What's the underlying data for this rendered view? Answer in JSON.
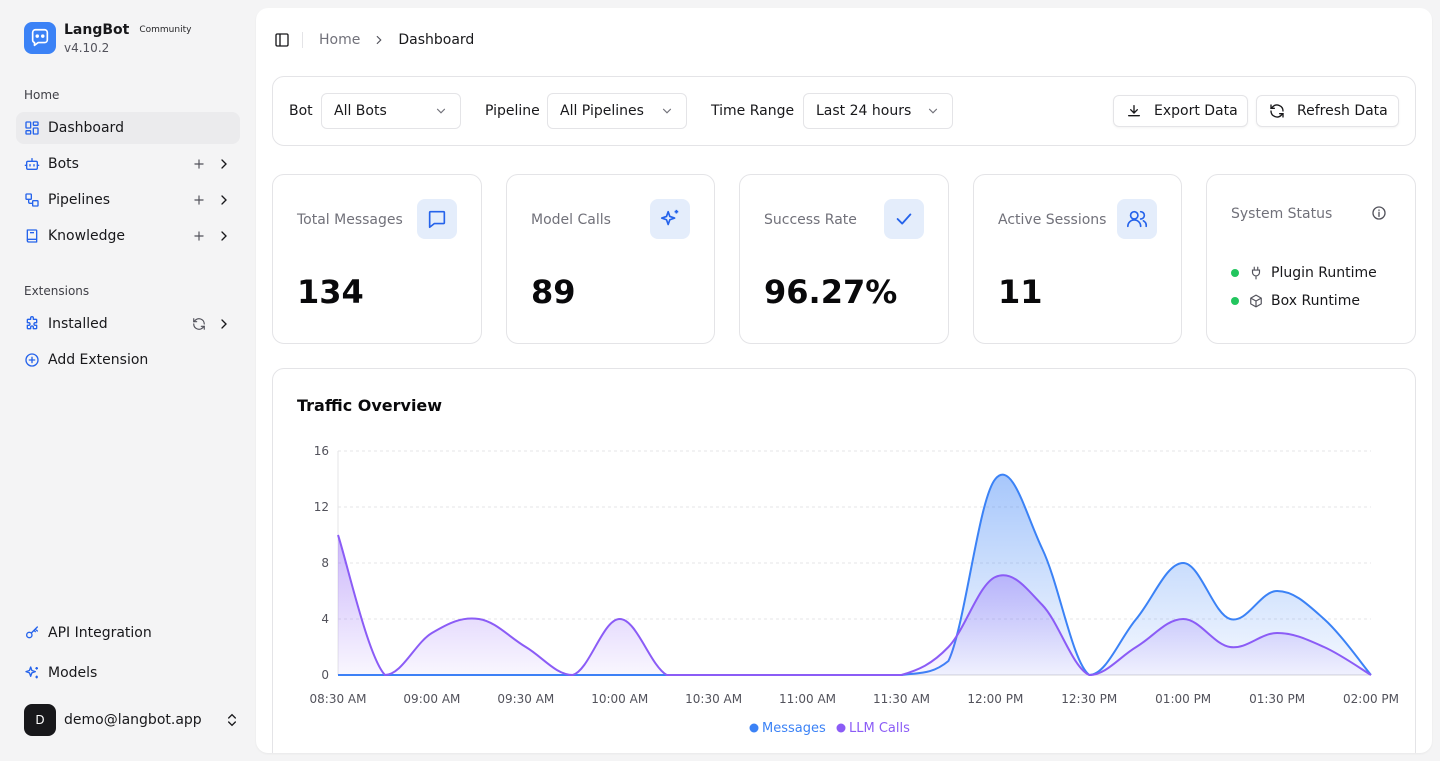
{
  "brand": {
    "name": "LangBot",
    "badge": "Community",
    "version": "v4.10.2"
  },
  "sidebar": {
    "home_label": "Home",
    "nav": [
      {
        "label": "Dashboard",
        "icon": "dashboard-icon",
        "active": true
      },
      {
        "label": "Bots",
        "icon": "bot-icon"
      },
      {
        "label": "Pipelines",
        "icon": "pipeline-icon"
      },
      {
        "label": "Knowledge",
        "icon": "book-icon"
      }
    ],
    "extensions_label": "Extensions",
    "extensions": [
      {
        "label": "Installed",
        "icon": "puzzle-icon"
      },
      {
        "label": "Add Extension",
        "icon": "plus-circle-icon"
      }
    ],
    "bottom": [
      {
        "label": "API Integration",
        "icon": "key-icon"
      },
      {
        "label": "Models",
        "icon": "sparkles-icon"
      }
    ],
    "user": {
      "avatar_letter": "D",
      "email": "demo@langbot.app"
    }
  },
  "breadcrumb": {
    "home": "Home",
    "current": "Dashboard"
  },
  "filters": {
    "bot_label": "Bot",
    "bot_value": "All Bots",
    "pipeline_label": "Pipeline",
    "pipeline_value": "All Pipelines",
    "time_label": "Time Range",
    "time_value": "Last 24 hours",
    "export_label": "Export Data",
    "refresh_label": "Refresh Data"
  },
  "stats": [
    {
      "title": "Total Messages",
      "value": "134",
      "icon": "message-icon"
    },
    {
      "title": "Model Calls",
      "value": "89",
      "icon": "sparkles-icon"
    },
    {
      "title": "Success Rate",
      "value": "96.27%",
      "icon": "check-icon"
    },
    {
      "title": "Active Sessions",
      "value": "11",
      "icon": "users-icon"
    }
  ],
  "system_status": {
    "title": "System Status",
    "items": [
      {
        "label": "Plugin Runtime",
        "icon": "plug-icon",
        "color": "#22c55e"
      },
      {
        "label": "Box Runtime",
        "icon": "box-icon",
        "color": "#22c55e"
      }
    ]
  },
  "chart": {
    "title": "Traffic Overview"
  },
  "chart_data": {
    "type": "area",
    "x": [
      "08:30 AM",
      "08:45 AM",
      "09:00 AM",
      "09:15 AM",
      "09:30 AM",
      "09:45 AM",
      "10:00 AM",
      "10:15 AM",
      "10:30 AM",
      "10:45 AM",
      "11:00 AM",
      "11:15 AM",
      "11:30 AM",
      "11:45 AM",
      "12:00 PM",
      "12:15 PM",
      "12:30 PM",
      "12:45 PM",
      "01:00 PM",
      "01:15 PM",
      "01:30 PM",
      "01:45 PM",
      "02:00 PM"
    ],
    "tick_labels": [
      "08:30 AM",
      "09:00 AM",
      "09:30 AM",
      "10:00 AM",
      "10:30 AM",
      "11:00 AM",
      "11:30 AM",
      "12:00 PM",
      "12:30 PM",
      "01:00 PM",
      "01:30 PM",
      "02:00 PM"
    ],
    "series": [
      {
        "name": "Messages",
        "color": "#3b82f6",
        "values": [
          0,
          0,
          0,
          0,
          0,
          0,
          0,
          0,
          0,
          0,
          0,
          0,
          0,
          1,
          14,
          9,
          0,
          4,
          8,
          4,
          6,
          4,
          0
        ]
      },
      {
        "name": "LLM Calls",
        "color": "#8b5cf6",
        "values": [
          10,
          0,
          3,
          4,
          2,
          0,
          4,
          0,
          0,
          0,
          0,
          0,
          0,
          2,
          7,
          5,
          0,
          2,
          4,
          2,
          3,
          2,
          0
        ]
      }
    ],
    "ylim": [
      0,
      16
    ],
    "yticks": [
      0,
      4,
      8,
      12,
      16
    ],
    "grid": true,
    "legend": "bottom-center"
  }
}
